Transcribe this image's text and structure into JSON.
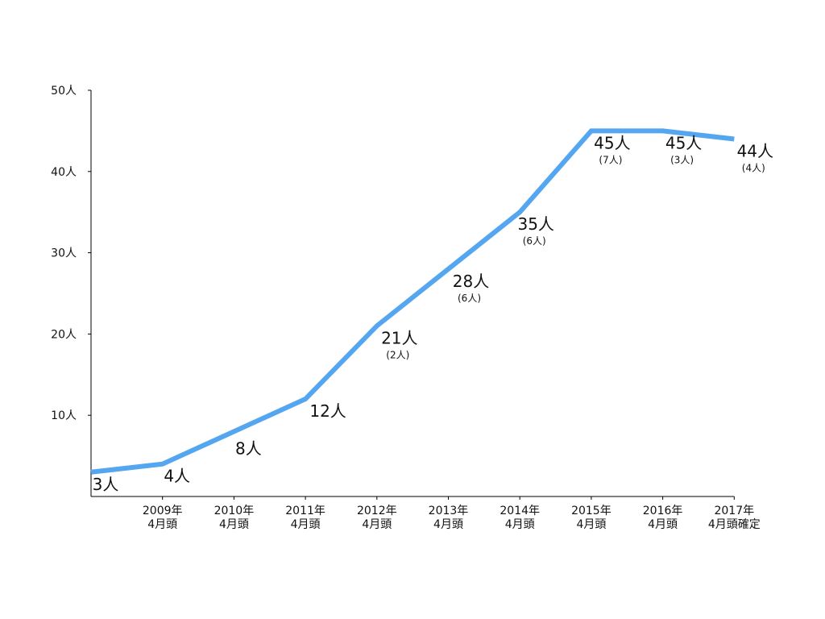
{
  "chart_data": {
    "type": "line",
    "title": "",
    "xlabel": "",
    "ylabel": "",
    "ylim": [
      0,
      50
    ],
    "yticks": [
      {
        "value": 10,
        "label": "10人"
      },
      {
        "value": 20,
        "label": "20人"
      },
      {
        "value": 30,
        "label": "30人"
      },
      {
        "value": 40,
        "label": "40人"
      },
      {
        "value": 50,
        "label": "50人"
      }
    ],
    "categories": [
      {
        "line1": "",
        "line2": ""
      },
      {
        "line1": "2009年",
        "line2": "4月頭"
      },
      {
        "line1": "2010年",
        "line2": "4月頭"
      },
      {
        "line1": "2011年",
        "line2": "4月頭"
      },
      {
        "line1": "2012年",
        "line2": "4月頭"
      },
      {
        "line1": "2013年",
        "line2": "4月頭"
      },
      {
        "line1": "2014年",
        "line2": "4月頭"
      },
      {
        "line1": "2015年",
        "line2": "4月頭"
      },
      {
        "line1": "2016年",
        "line2": "4月頭"
      },
      {
        "line1": "2017年",
        "line2": "4月頭確定"
      }
    ],
    "series": [
      {
        "values": [
          3,
          4,
          8,
          12,
          21,
          28,
          35,
          45,
          45,
          44
        ]
      }
    ],
    "data_labels": [
      {
        "main": "3人",
        "sub": ""
      },
      {
        "main": "4人",
        "sub": ""
      },
      {
        "main": "8人",
        "sub": ""
      },
      {
        "main": "12人",
        "sub": ""
      },
      {
        "main": "21人",
        "sub": "(2人)"
      },
      {
        "main": "28人",
        "sub": "(6人)"
      },
      {
        "main": "35人",
        "sub": "(6人)"
      },
      {
        "main": "45人",
        "sub": "(7人)"
      },
      {
        "main": "45人",
        "sub": "(3人)"
      },
      {
        "main": "44人",
        "sub": "(4人)"
      }
    ],
    "line_color": "#55a6f0",
    "axis_color": "#000000",
    "grid": false,
    "legend": "none"
  }
}
